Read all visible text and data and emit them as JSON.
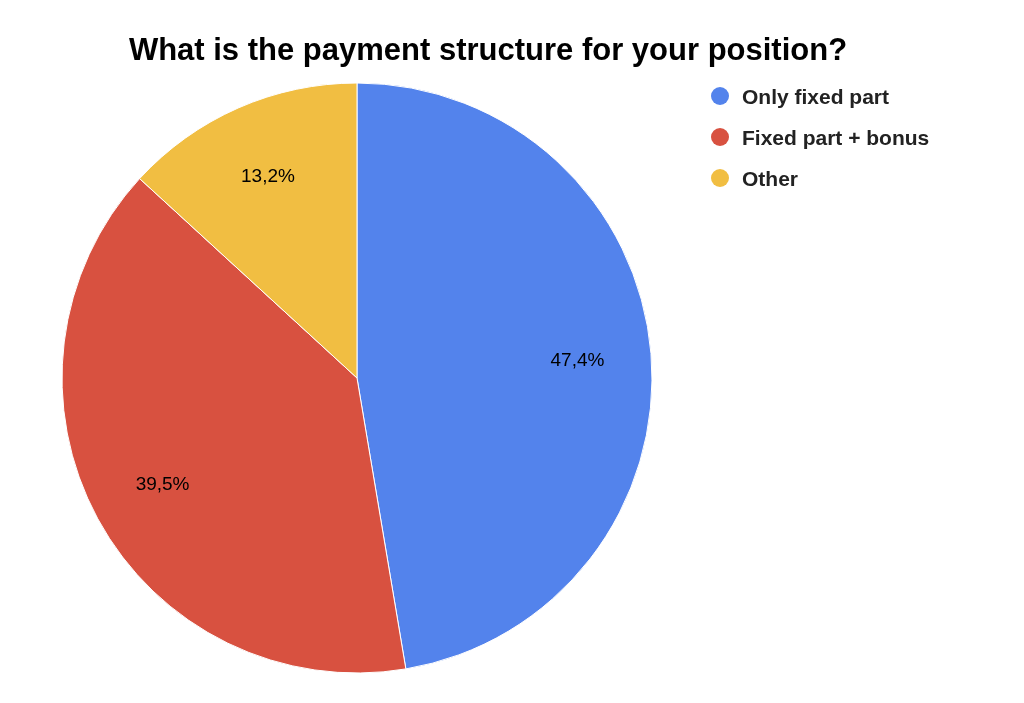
{
  "chart_data": {
    "type": "pie",
    "title": "What is the payment structure for your position?",
    "categories": [
      "Only fixed part",
      "Fixed part + bonus",
      "Other"
    ],
    "values": [
      47.4,
      39.5,
      13.2
    ],
    "colors": [
      "#5383ec",
      "#d85140",
      "#f1be42"
    ],
    "value_labels": [
      "47,4%",
      "39,5%",
      "13,2%"
    ],
    "legend": "top right"
  }
}
